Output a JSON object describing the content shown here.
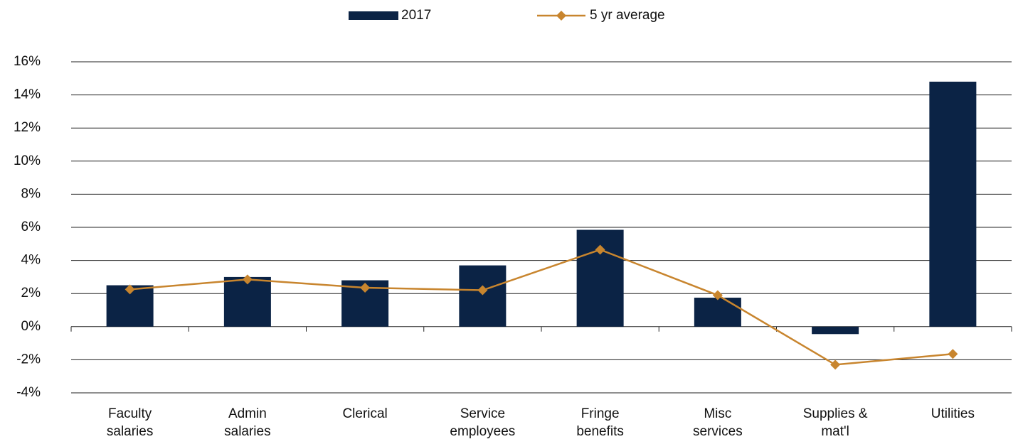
{
  "chart_data": {
    "type": "bar_line",
    "categories": [
      "Faculty salaries",
      "Admin salaries",
      "Clerical",
      "Service employees",
      "Fringe benefits",
      "Misc services",
      "Supplies & mat'l",
      "Utilities"
    ],
    "series": [
      {
        "name": "2017",
        "color": "#0b2345",
        "type": "bar",
        "values": [
          2.5,
          3.0,
          2.8,
          3.7,
          5.85,
          1.75,
          -0.45,
          14.8
        ]
      },
      {
        "name": "5 yr average",
        "color": "#c8852e",
        "type": "line",
        "values": [
          2.25,
          2.85,
          2.35,
          2.2,
          4.65,
          1.9,
          -2.3,
          -1.65
        ]
      }
    ],
    "ylim": [
      -4,
      16
    ],
    "yticks": [
      {
        "value": -4,
        "label": "-4%"
      },
      {
        "value": -2,
        "label": "-2%"
      },
      {
        "value": 0,
        "label": "0%"
      },
      {
        "value": 2,
        "label": "2%"
      },
      {
        "value": 4,
        "label": "4%"
      },
      {
        "value": 6,
        "label": "6%"
      },
      {
        "value": 8,
        "label": "8%"
      },
      {
        "value": 10,
        "label": "10%"
      },
      {
        "value": 12,
        "label": "12%"
      },
      {
        "value": 14,
        "label": "14%"
      },
      {
        "value": 16,
        "label": "16%"
      }
    ],
    "grid": true,
    "legend": "top"
  }
}
